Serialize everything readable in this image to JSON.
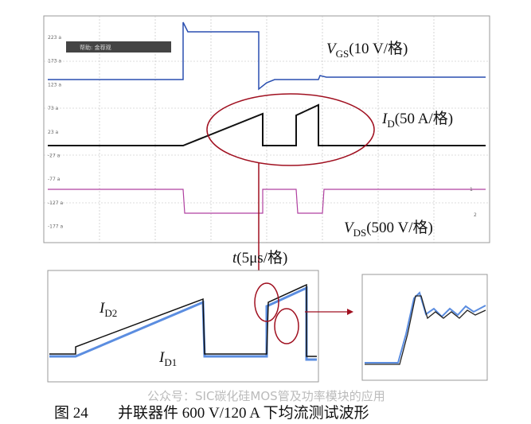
{
  "top_panel": {
    "tag": "帮助: 金荐观",
    "scale_labels": [
      "223 a",
      "173 a",
      "123 a",
      "73 a",
      "23 a",
      "-27 a",
      "-77 a",
      "-127 a",
      "-177 a"
    ],
    "markers": [
      "1",
      "2"
    ]
  },
  "labels": {
    "vgs": {
      "symbol": "V",
      "sub": "GS",
      "scale": "(10 V/格)"
    },
    "id": {
      "symbol": "I",
      "sub": "D",
      "scale": "(50 A/格)"
    },
    "vds": {
      "symbol": "V",
      "sub": "DS",
      "scale": "(500 V/格)"
    },
    "time": {
      "symbol": "t",
      "scale": "(5μs/格)"
    },
    "id2": {
      "symbol": "I",
      "sub": "D2"
    },
    "id1": {
      "symbol": "I",
      "sub": "D1"
    }
  },
  "caption": {
    "number": "图 24",
    "text": "并联器件 600 V/120 A 下均流测试波形"
  },
  "watermark": "公众号：SIC碳化硅MOS管及功率模块的应用"
}
